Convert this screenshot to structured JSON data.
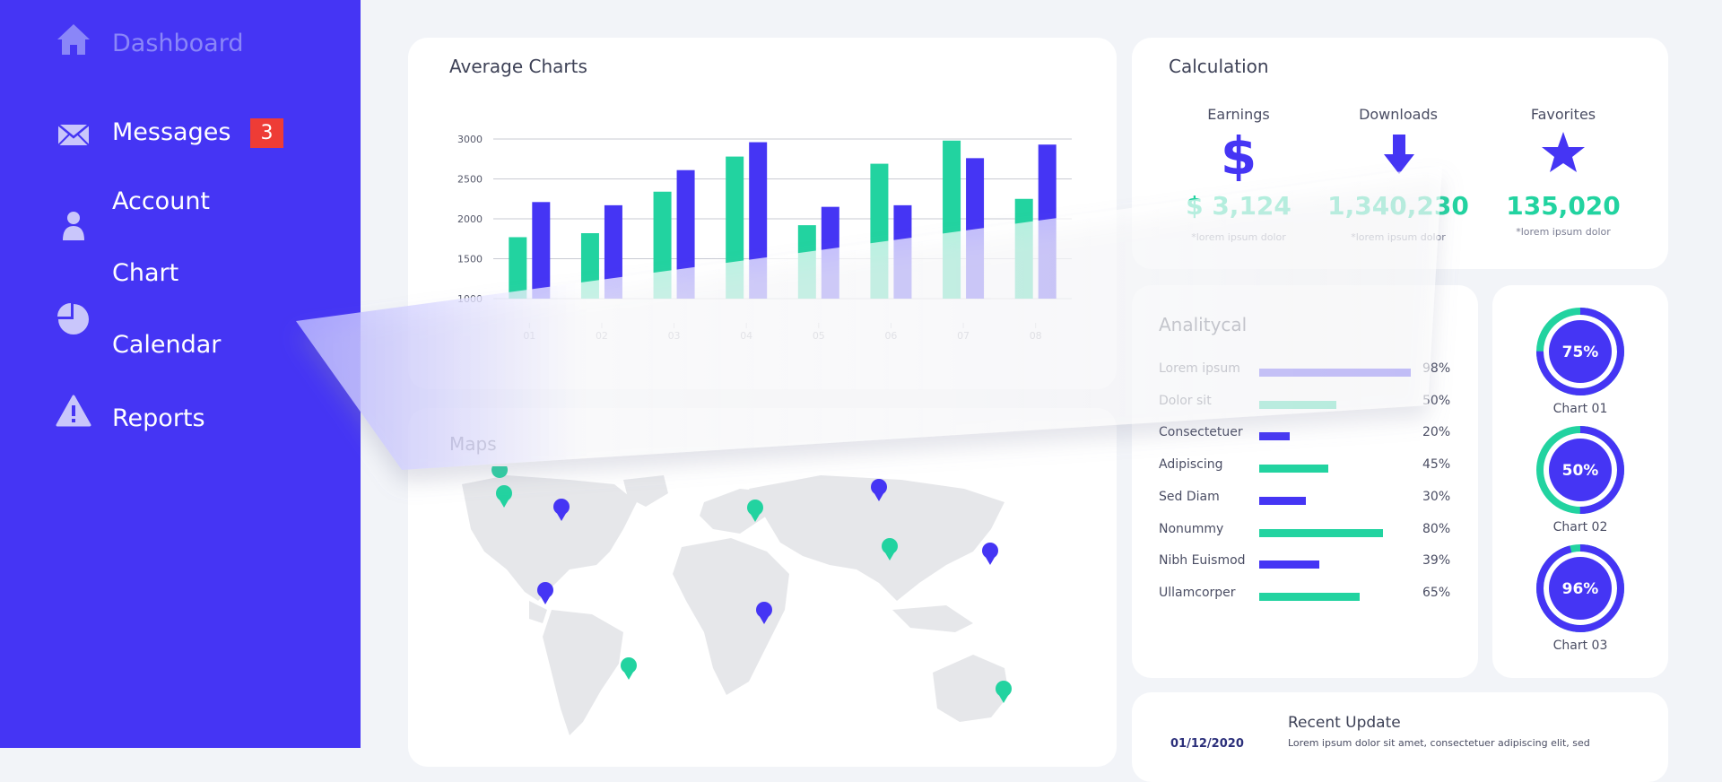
{
  "sidebar": {
    "items": [
      {
        "label": "Dashboard",
        "icon": "home-icon"
      },
      {
        "label": "Messages",
        "icon": "envelope-icon",
        "badge": "3"
      },
      {
        "label": "Account",
        "icon": "user-icon"
      },
      {
        "label": "Chart",
        "icon": "pie-chart-icon"
      },
      {
        "label": "Calendar",
        "icon": ""
      },
      {
        "label": "Reports",
        "icon": "warning-icon"
      }
    ]
  },
  "average_charts": {
    "title": "Average Charts"
  },
  "chart_data": {
    "type": "bar",
    "title": "Average Charts",
    "categories": [
      "01",
      "02",
      "03",
      "04",
      "05",
      "06",
      "07",
      "08"
    ],
    "series": [
      {
        "values": [
          1770,
          1820,
          2340,
          2780,
          1920,
          2690,
          2980,
          2250
        ]
      },
      {
        "values": [
          2210,
          2170,
          2610,
          2960,
          2150,
          2170,
          2760,
          2930
        ]
      }
    ],
    "yticks": [
      1000,
      1500,
      2000,
      2500,
      3000
    ],
    "ylim": [
      1000,
      3000
    ],
    "grid": true,
    "colors": [
      "#22d3a0",
      "#4535f4"
    ]
  },
  "calculation": {
    "title": "Calculation",
    "stats": [
      {
        "label": "Earnings",
        "icon": "dollar-icon",
        "value": "$ 3,124",
        "note": "*lorem ipsum dolor"
      },
      {
        "label": "Downloads",
        "icon": "download-arrow-icon",
        "value": "1,340,230",
        "note": "*lorem ipsum dolor"
      },
      {
        "label": "Favorites",
        "icon": "star-icon",
        "value": "135,020",
        "note": "*lorem ipsum dolor"
      }
    ]
  },
  "analytical": {
    "title": "Analitycal",
    "rows": [
      {
        "name": "Lorem ipsum",
        "pct": "98%",
        "value": 98,
        "color": "#4535f4"
      },
      {
        "name": "Dolor sit",
        "pct": "50%",
        "value": 50,
        "color": "#22d3a0"
      },
      {
        "name": "Consectetuer",
        "pct": "20%",
        "value": 20,
        "color": "#4535f4"
      },
      {
        "name": "Adipiscing",
        "pct": "45%",
        "value": 45,
        "color": "#22d3a0"
      },
      {
        "name": "Sed Diam",
        "pct": "30%",
        "value": 30,
        "color": "#4535f4"
      },
      {
        "name": "Nonummy",
        "pct": "80%",
        "value": 80,
        "color": "#22d3a0"
      },
      {
        "name": "Nibh Euismod",
        "pct": "39%",
        "value": 39,
        "color": "#4535f4"
      },
      {
        "name": "Ullamcorper",
        "pct": "65%",
        "value": 65,
        "color": "#22d3a0"
      }
    ]
  },
  "donuts": [
    {
      "label": "Chart 01",
      "pct": "75%",
      "value": 75
    },
    {
      "label": "Chart 02",
      "pct": "50%",
      "value": 50
    },
    {
      "label": "Chart 03",
      "pct": "96%",
      "value": 96
    }
  ],
  "maps": {
    "title": "Maps"
  },
  "recent_update": {
    "title": "Recent Update",
    "date": "01/12/2020",
    "text": "Lorem ipsum dolor sit amet, consectetuer adipiscing elit, sed"
  },
  "colors": {
    "primary": "#4535f4",
    "accent": "#22d3a0",
    "badge": "#ee3c36",
    "background": "#f2f4f8"
  }
}
